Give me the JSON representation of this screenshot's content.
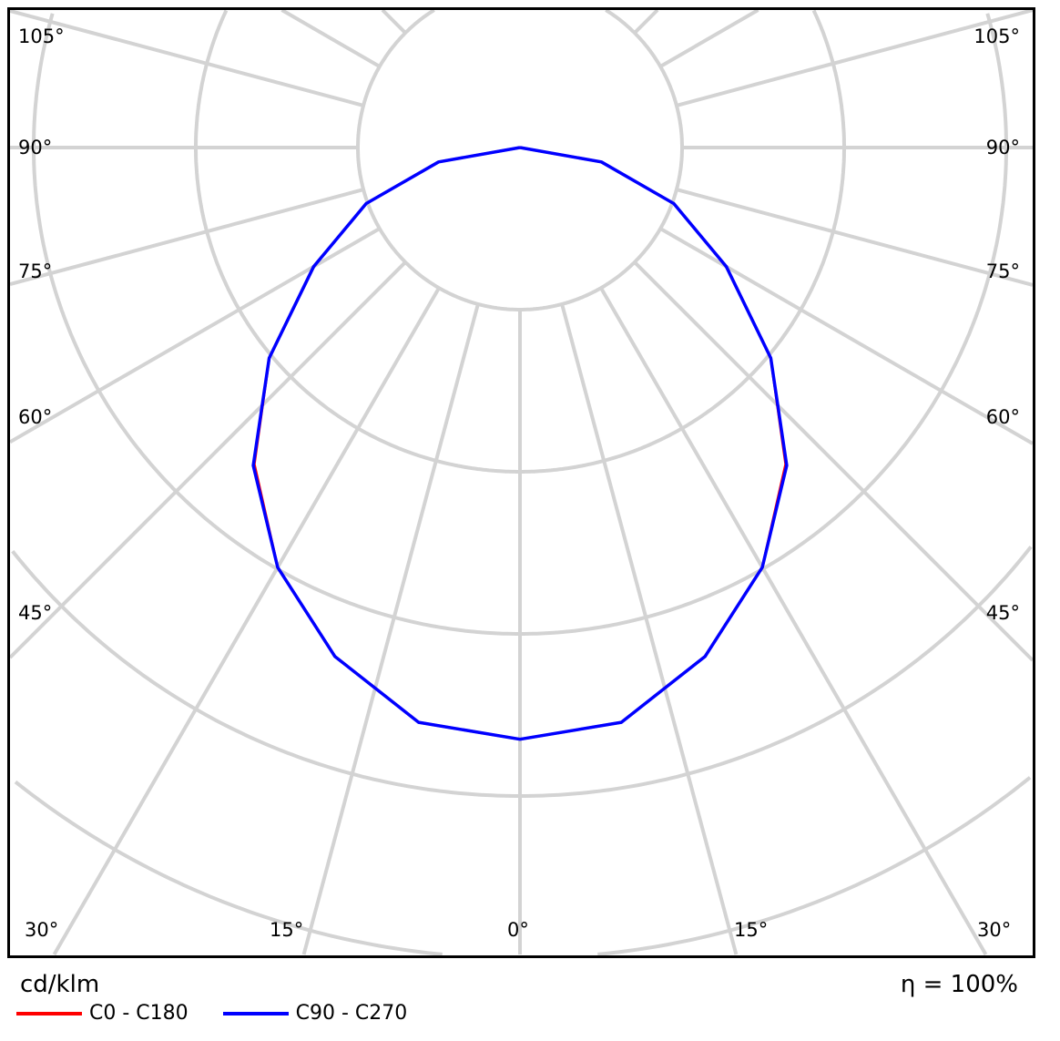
{
  "chart_data": {
    "type": "polar",
    "unit_label": "cd/klm",
    "efficiency_label": "η = 100%",
    "angle_labels_left": [
      "105°",
      "90°",
      "75°",
      "60°",
      "45°"
    ],
    "angle_labels_bottom": [
      "30°",
      "15°",
      "0°",
      "15°",
      "30°"
    ],
    "angle_grid_step_deg": 15,
    "grid": true,
    "radial_scale_unit": "grid ring",
    "legend_position": "bottom-left",
    "angles_deg": [
      0,
      10,
      20,
      30,
      40,
      50,
      60,
      70,
      80,
      90
    ],
    "series": [
      {
        "name": "C0 - C180",
        "color": "#ff0000",
        "values": [
          3.65,
          3.6,
          3.34,
          2.99,
          2.55,
          2.02,
          1.47,
          1.01,
          0.51,
          0
        ]
      },
      {
        "name": "C90 - C270",
        "color": "#0000ff",
        "values": [
          3.65,
          3.6,
          3.34,
          2.99,
          2.56,
          2.02,
          1.47,
          1.01,
          0.51,
          0
        ]
      }
    ]
  }
}
